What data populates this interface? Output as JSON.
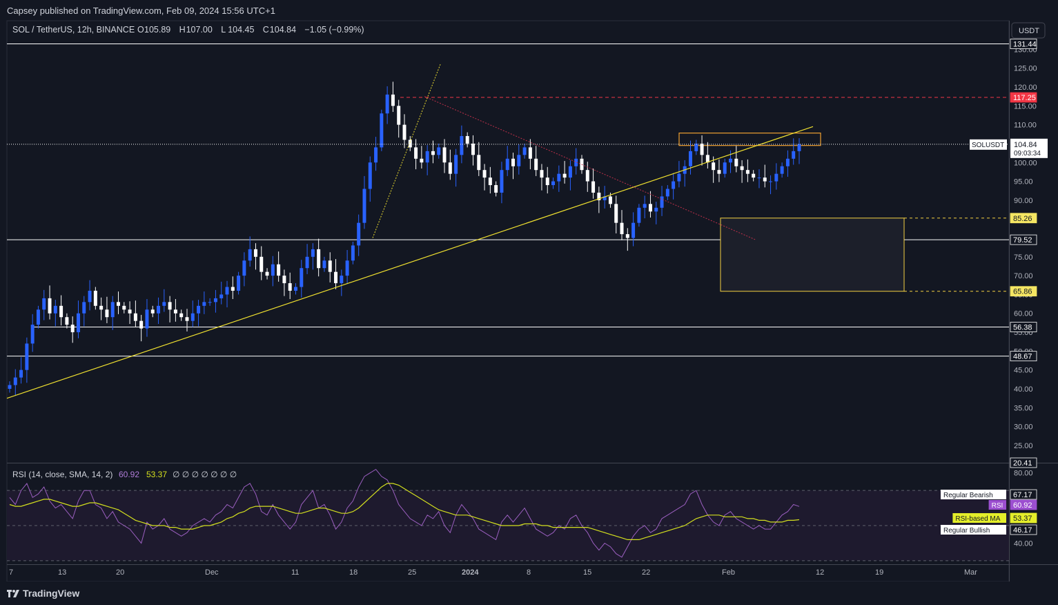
{
  "header": {
    "publisher": "Capsey published on TradingView.com, Feb 09, 2024 15:56 UTC+1",
    "symbol": "SOL / TetherUS, 12h, BINANCE",
    "ohlc": [
      {
        "k": "O",
        "v": "105.89"
      },
      {
        "k": "H",
        "v": "107.00"
      },
      {
        "k": "L",
        "v": "104.45"
      },
      {
        "k": "C",
        "v": "104.84"
      },
      {
        "k": "",
        "v": "−1.05 (−0.99%)"
      }
    ],
    "currency_button": "USDT"
  },
  "footer": {
    "brand": "TradingView"
  },
  "colors": {
    "background": "#131722",
    "up": "#2962ff",
    "down": "#ffffff",
    "trendline": "#f0e130",
    "rsi": "#9b5fc0",
    "rsi_ma": "#d4e01e",
    "resistance": "#f23645",
    "zone": "#f5d142",
    "box": "#f0a030"
  },
  "chart_data": [
    {
      "type": "candlestick",
      "title": "SOL / TetherUS, 12h, BINANCE",
      "x_ticks": [
        "7",
        "13",
        "20",
        "Dec",
        "11",
        "18",
        "25",
        "2024",
        "8",
        "15",
        "22",
        "Feb",
        "12",
        "19",
        "Mar"
      ],
      "y_ticks": [
        "130.00",
        "125.00",
        "120.00",
        "115.00",
        "110.00",
        "105.00",
        "100.00",
        "95.00",
        "90.00",
        "85.00",
        "80.00",
        "75.00",
        "70.00",
        "65.00",
        "60.00",
        "55.00",
        "50.00",
        "45.00",
        "40.00",
        "35.00",
        "30.00",
        "25.00"
      ],
      "ylim": [
        20.41,
        133
      ],
      "price_labels": [
        {
          "text": "131.44",
          "value": 131.44,
          "style": "white-line"
        },
        {
          "text": "117.25",
          "value": 117.25,
          "style": "red"
        },
        {
          "text": "85.26",
          "value": 85.26,
          "style": "yellow"
        },
        {
          "text": "79.52",
          "value": 79.52,
          "style": "white-line"
        },
        {
          "text": "65.86",
          "value": 65.86,
          "style": "yellow"
        },
        {
          "text": "56.38",
          "value": 56.38,
          "style": "white-line"
        },
        {
          "text": "48.67",
          "value": 48.67,
          "style": "white-line"
        },
        {
          "text": "20.41",
          "value": 20.41,
          "style": "plain"
        }
      ],
      "last_price": {
        "symbol": "SOLUSDT",
        "price": "104.84",
        "countdown": "09:03:34",
        "value": 104.84
      },
      "path_closes": [
        41,
        43,
        45,
        52,
        57,
        61,
        64,
        60,
        62,
        59,
        57,
        55,
        60,
        63,
        66,
        62,
        61,
        59,
        63,
        62,
        61,
        60,
        58,
        56,
        61,
        60,
        62,
        63,
        61,
        60,
        59,
        58,
        60,
        62,
        63,
        63,
        64,
        65,
        67,
        66,
        70,
        74,
        77,
        75,
        71,
        70,
        73,
        70,
        68,
        66,
        67,
        72,
        75,
        77,
        72,
        74,
        71,
        68,
        70,
        74,
        78,
        84,
        93,
        100,
        104,
        113,
        118,
        115,
        110,
        106,
        104,
        101,
        100,
        103,
        102,
        104,
        100,
        97,
        102,
        107,
        105,
        102,
        98,
        96,
        94,
        92,
        98,
        101,
        99,
        102,
        104,
        101,
        98,
        96,
        94,
        95,
        97,
        96,
        99,
        101,
        98,
        95,
        92,
        90,
        91,
        89,
        84,
        81,
        80,
        84,
        88,
        89,
        87,
        88,
        91,
        93,
        95,
        97,
        99,
        103,
        105,
        102,
        100,
        98,
        97,
        100,
        101,
        99,
        98,
        97,
        96,
        96,
        95,
        95,
        97,
        99,
        101,
        103,
        104.84
      ],
      "rsi": {
        "label": "RSI (14, close, SMA, 14, 2)",
        "value": "60.92",
        "ma_value": "53.37",
        "placeholders": "∅ ∅ ∅ ∅ ∅ ∅ ∅",
        "ylim": [
          28,
          85
        ],
        "y_ticks": [
          "80.00",
          "40.00"
        ],
        "band_upper": 70,
        "band_mid": 50,
        "band_lower": 30,
        "rsi_series": [
          66,
          62,
          70,
          74,
          66,
          68,
          72,
          64,
          60,
          62,
          58,
          54,
          64,
          70,
          70,
          62,
          60,
          54,
          58,
          52,
          50,
          48,
          44,
          40,
          52,
          48,
          50,
          54,
          48,
          46,
          44,
          46,
          50,
          52,
          54,
          52,
          56,
          58,
          62,
          60,
          66,
          72,
          74,
          68,
          58,
          56,
          62,
          56,
          52,
          48,
          52,
          62,
          66,
          70,
          60,
          62,
          56,
          48,
          52,
          60,
          64,
          72,
          78,
          80,
          82,
          78,
          76,
          70,
          62,
          58,
          54,
          52,
          50,
          56,
          54,
          58,
          50,
          46,
          56,
          62,
          58,
          54,
          48,
          46,
          44,
          42,
          52,
          56,
          52,
          56,
          60,
          54,
          48,
          46,
          44,
          46,
          50,
          48,
          54,
          56,
          50,
          46,
          40,
          36,
          40,
          38,
          34,
          32,
          38,
          44,
          48,
          50,
          46,
          48,
          54,
          56,
          58,
          60,
          62,
          68,
          70,
          62,
          56,
          52,
          50,
          56,
          58,
          54,
          52,
          50,
          48,
          50,
          48,
          48,
          52,
          56,
          58,
          62,
          60.92
        ],
        "ma_series": [
          62,
          61,
          61,
          62,
          63,
          64,
          65,
          65,
          64,
          63,
          62,
          61,
          61,
          62,
          63,
          63,
          62,
          61,
          60,
          59,
          57,
          55,
          53,
          52,
          51,
          50,
          50,
          50,
          49,
          49,
          48,
          48,
          48,
          49,
          50,
          50,
          51,
          52,
          54,
          55,
          57,
          58,
          60,
          61,
          61,
          61,
          61,
          60,
          59,
          58,
          57,
          57,
          58,
          59,
          60,
          60,
          59,
          58,
          57,
          57,
          58,
          60,
          63,
          66,
          69,
          72,
          74,
          74,
          73,
          71,
          69,
          67,
          65,
          63,
          61,
          59,
          58,
          57,
          56,
          56,
          56,
          55,
          54,
          53,
          52,
          51,
          50,
          50,
          50,
          50,
          51,
          51,
          51,
          50,
          50,
          49,
          49,
          49,
          49,
          49,
          49,
          49,
          48,
          47,
          46,
          45,
          44,
          43,
          42,
          42,
          42,
          43,
          44,
          45,
          46,
          47,
          48,
          49,
          50,
          52,
          54,
          55,
          56,
          56,
          56,
          55,
          55,
          55,
          55,
          54,
          54,
          53,
          53,
          52,
          52,
          52,
          53,
          53,
          53.37
        ],
        "labels": [
          {
            "text": "Regular Bearish",
            "value": "67.17",
            "val": 67.17
          },
          {
            "text": "RSI",
            "value": "60.92",
            "val": 60.92
          },
          {
            "text": "RSI-based MA",
            "value": "53.37",
            "val": 53.37
          },
          {
            "text": "Regular Bullish",
            "value": "46.17",
            "val": 46.17
          }
        ],
        "low_tick": "40.00"
      }
    }
  ]
}
